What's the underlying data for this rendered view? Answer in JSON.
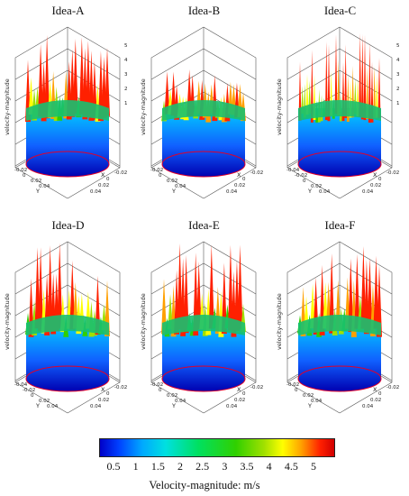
{
  "panels": [
    {
      "title": "Idea-A",
      "axis_label": "velocity-magnitude",
      "z_ticks": [
        "5",
        "4",
        "3",
        "2",
        "1"
      ],
      "x_label": "X",
      "y_label": "Y",
      "x_ticks": [
        "0.04",
        "0.02",
        "0",
        "-0.02"
      ],
      "y_ticks": [
        "-0.02",
        "0",
        "0.02",
        "0.04"
      ],
      "scheme": "spiky"
    },
    {
      "title": "Idea-B",
      "axis_label": "velocity-magnitude",
      "z_ticks": [],
      "x_label": "X",
      "y_label": "Y",
      "x_ticks": [
        "0.04",
        "0.02",
        "0",
        "-0.02"
      ],
      "y_ticks": [
        "-0.02",
        "0",
        "0.02",
        "0.04"
      ],
      "scheme": "flat"
    },
    {
      "title": "Idea-C",
      "axis_label": "velocity-magnitude",
      "z_ticks": [
        "5",
        "4",
        "3",
        "2",
        "1"
      ],
      "x_label": "X",
      "y_label": "Y",
      "x_ticks": [
        "0.04",
        "0.02",
        "0",
        "-0.02"
      ],
      "y_ticks": [
        "-0.04",
        "-0.02",
        "0",
        "0.02",
        "0.04"
      ],
      "scheme": "thin"
    },
    {
      "title": "Idea-D",
      "axis_label": "velocity-magnitude",
      "z_ticks": [],
      "x_label": "X",
      "y_label": "Y",
      "x_ticks": [
        "0.04",
        "0.02",
        "0",
        "-0.02"
      ],
      "y_ticks": [
        "-0.04",
        "-0.02",
        "0",
        "0.02",
        "0.04"
      ],
      "scheme": "spiky"
    },
    {
      "title": "Idea-E",
      "axis_label": "velocity-magnitude",
      "z_ticks": [],
      "x_label": "X",
      "y_label": "Y",
      "x_ticks": [
        "0.04",
        "0.02",
        "0",
        "-0.02"
      ],
      "y_ticks": [
        "-0.02",
        "0",
        "0.02",
        "0.04"
      ],
      "scheme": "spiky"
    },
    {
      "title": "Idea-F",
      "axis_label": "velocity-magnitude",
      "z_ticks": [],
      "x_label": "X",
      "y_label": "Y",
      "x_ticks": [
        "0.04",
        "0.02",
        "0",
        "-0.02"
      ],
      "y_ticks": [
        "-0.02",
        "0",
        "0.02",
        "0.04"
      ],
      "scheme": "spiky"
    }
  ],
  "colorbar": {
    "ticks": [
      "0.5",
      "1",
      "1.5",
      "2",
      "2.5",
      "3",
      "3.5",
      "4",
      "4.5",
      "5"
    ],
    "label": "Velocity-magnitude: m/s",
    "colors": [
      "#0000c8",
      "#0040ff",
      "#00a8ff",
      "#00e0e0",
      "#00e060",
      "#30d000",
      "#a0e000",
      "#ffff00",
      "#ffa000",
      "#ff2000"
    ]
  }
}
